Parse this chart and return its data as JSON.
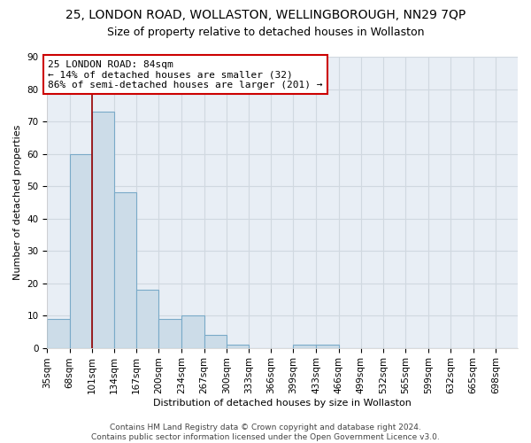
{
  "title": "25, LONDON ROAD, WOLLASTON, WELLINGBOROUGH, NN29 7QP",
  "subtitle": "Size of property relative to detached houses in Wollaston",
  "xlabel": "Distribution of detached houses by size in Wollaston",
  "ylabel": "Number of detached properties",
  "bar_color": "#ccdce8",
  "bar_edge_color": "#7aaac8",
  "background_color": "#e8eef5",
  "grid_color": "#d0d8e0",
  "categories": [
    "35sqm",
    "68sqm",
    "101sqm",
    "134sqm",
    "167sqm",
    "200sqm",
    "234sqm",
    "267sqm",
    "300sqm",
    "333sqm",
    "366sqm",
    "399sqm",
    "433sqm",
    "466sqm",
    "499sqm",
    "532sqm",
    "565sqm",
    "599sqm",
    "632sqm",
    "665sqm",
    "698sqm"
  ],
  "values": [
    9,
    60,
    73,
    48,
    18,
    9,
    10,
    4,
    1,
    0,
    0,
    1,
    1,
    0,
    0,
    0,
    0,
    0,
    0,
    0,
    0
  ],
  "ylim": [
    0,
    90
  ],
  "yticks": [
    0,
    10,
    20,
    30,
    40,
    50,
    60,
    70,
    80,
    90
  ],
  "bin_edges": [
    35,
    68,
    101,
    134,
    167,
    200,
    234,
    267,
    300,
    333,
    366,
    399,
    433,
    466,
    499,
    532,
    565,
    599,
    632,
    665,
    698,
    731
  ],
  "red_line_x": 101,
  "red_line_color": "#990000",
  "annotation_text": "25 LONDON ROAD: 84sqm\n← 14% of detached houses are smaller (32)\n86% of semi-detached houses are larger (201) →",
  "annotation_box_color": "#ffffff",
  "annotation_border_color": "#cc0000",
  "footer_text": "Contains HM Land Registry data © Crown copyright and database right 2024.\nContains public sector information licensed under the Open Government Licence v3.0.",
  "title_fontsize": 10,
  "subtitle_fontsize": 9,
  "axis_label_fontsize": 8,
  "tick_fontsize": 7.5,
  "annotation_fontsize": 8,
  "footer_fontsize": 6.5
}
